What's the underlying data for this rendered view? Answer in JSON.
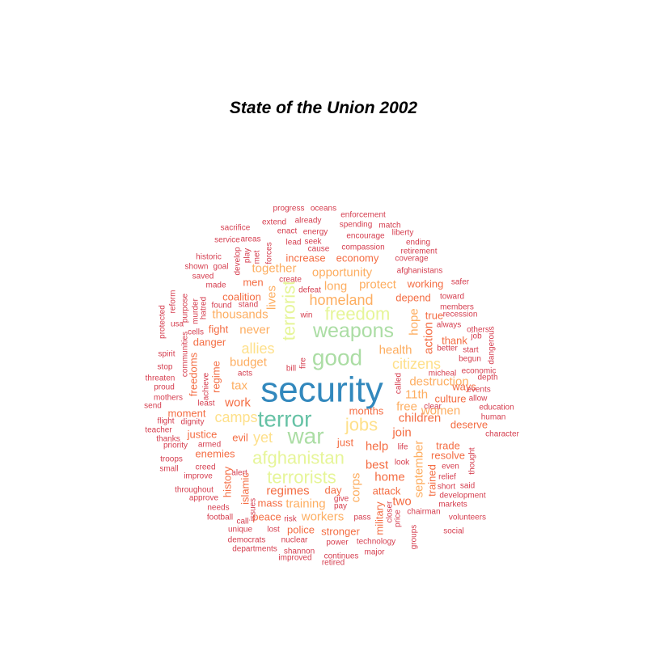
{
  "chart_data": {
    "type": "wordcloud",
    "title": "State of the Union 2002",
    "palette": [
      "#d53e4f",
      "#f46d43",
      "#fdae61",
      "#fee08b",
      "#e6f598",
      "#abdda4",
      "#66c2a5",
      "#3288bd"
    ],
    "words": [
      {
        "text": "security",
        "weight": 10,
        "color": "#3288bd"
      },
      {
        "text": "terror",
        "weight": 7,
        "color": "#66c2a5"
      },
      {
        "text": "war",
        "weight": 7,
        "color": "#abdda4"
      },
      {
        "text": "good",
        "weight": 7,
        "color": "#abdda4"
      },
      {
        "text": "weapons",
        "weight": 6,
        "color": "#abdda4"
      },
      {
        "text": "freedom",
        "weight": 5,
        "color": "#e6f598"
      },
      {
        "text": "terrorist",
        "weight": 5,
        "color": "#e6f598",
        "vertical": true
      },
      {
        "text": "afghanistan",
        "weight": 5,
        "color": "#e6f598"
      },
      {
        "text": "terrorists",
        "weight": 5,
        "color": "#e6f598"
      },
      {
        "text": "jobs",
        "weight": 5,
        "color": "#fee08b"
      },
      {
        "text": "citizens",
        "weight": 4,
        "color": "#fee08b"
      },
      {
        "text": "allies",
        "weight": 4,
        "color": "#fee08b"
      },
      {
        "text": "camps",
        "weight": 4,
        "color": "#fee08b"
      },
      {
        "text": "yet",
        "weight": 4,
        "color": "#fee08b"
      },
      {
        "text": "homeland",
        "weight": 4,
        "color": "#fdae61"
      },
      {
        "text": "budget",
        "weight": 3,
        "color": "#fdae61"
      },
      {
        "text": "never",
        "weight": 3,
        "color": "#fdae61"
      },
      {
        "text": "tax",
        "weight": 3,
        "color": "#fdae61"
      },
      {
        "text": "work",
        "weight": 3,
        "color": "#f46d43"
      },
      {
        "text": "help",
        "weight": 3,
        "color": "#f46d43"
      },
      {
        "text": "join",
        "weight": 3,
        "color": "#f46d43"
      },
      {
        "text": "best",
        "weight": 3,
        "color": "#f46d43"
      },
      {
        "text": "regimes",
        "weight": 3,
        "color": "#f46d43"
      },
      {
        "text": "lives",
        "weight": 3,
        "color": "#fdae61",
        "vertical": true
      },
      {
        "text": "corps",
        "weight": 3,
        "color": "#fdae61",
        "vertical": true
      },
      {
        "text": "destruction",
        "weight": 3,
        "color": "#fdae61"
      },
      {
        "text": "11th",
        "weight": 3,
        "color": "#fdae61"
      },
      {
        "text": "women",
        "weight": 3,
        "color": "#fdae61"
      },
      {
        "text": "together",
        "weight": 3,
        "color": "#fdae61"
      },
      {
        "text": "opportunity",
        "weight": 3,
        "color": "#fdae61"
      },
      {
        "text": "protect",
        "weight": 3,
        "color": "#fdae61"
      },
      {
        "text": "long",
        "weight": 3,
        "color": "#fdae61"
      },
      {
        "text": "thousands",
        "weight": 3,
        "color": "#fdae61"
      },
      {
        "text": "health",
        "weight": 3,
        "color": "#fdae61"
      },
      {
        "text": "free",
        "weight": 3,
        "color": "#fdae61"
      },
      {
        "text": "training",
        "weight": 3,
        "color": "#fdae61"
      },
      {
        "text": "workers",
        "weight": 3,
        "color": "#fdae61"
      },
      {
        "text": "september",
        "weight": 3,
        "color": "#fdae61",
        "vertical": true
      },
      {
        "text": "hope",
        "weight": 3,
        "color": "#fdae61",
        "vertical": true
      },
      {
        "text": "action",
        "weight": 3,
        "color": "#f46d43",
        "vertical": true
      },
      {
        "text": "children",
        "weight": 3,
        "color": "#f46d43"
      },
      {
        "text": "home",
        "weight": 3,
        "color": "#f46d43"
      },
      {
        "text": "two",
        "weight": 3,
        "color": "#f46d43"
      },
      {
        "text": "attack",
        "weight": 2,
        "color": "#f46d43"
      },
      {
        "text": "stronger",
        "weight": 2,
        "color": "#f46d43"
      },
      {
        "text": "military",
        "weight": 2,
        "color": "#f46d43",
        "vertical": true
      },
      {
        "text": "trained",
        "weight": 2,
        "color": "#f46d43",
        "vertical": true
      },
      {
        "text": "regime",
        "weight": 2,
        "color": "#f46d43",
        "vertical": true
      },
      {
        "text": "increase",
        "weight": 2,
        "color": "#f46d43"
      },
      {
        "text": "economy",
        "weight": 2,
        "color": "#f46d43"
      },
      {
        "text": "coalition",
        "weight": 2,
        "color": "#f46d43"
      },
      {
        "text": "depend",
        "weight": 2,
        "color": "#f46d43"
      },
      {
        "text": "working",
        "weight": 2,
        "color": "#f46d43"
      },
      {
        "text": "fight",
        "weight": 2,
        "color": "#f46d43"
      },
      {
        "text": "danger",
        "weight": 2,
        "color": "#f46d43"
      },
      {
        "text": "men",
        "weight": 2,
        "color": "#f46d43"
      },
      {
        "text": "true",
        "weight": 2,
        "color": "#f46d43"
      },
      {
        "text": "thank",
        "weight": 2,
        "color": "#f46d43"
      },
      {
        "text": "culture",
        "weight": 2,
        "color": "#f46d43"
      },
      {
        "text": "ways",
        "weight": 2,
        "color": "#f46d43"
      },
      {
        "text": "months",
        "weight": 2,
        "color": "#f46d43"
      },
      {
        "text": "moment",
        "weight": 2,
        "color": "#f46d43"
      },
      {
        "text": "justice",
        "weight": 2,
        "color": "#f46d43"
      },
      {
        "text": "evil",
        "weight": 2,
        "color": "#f46d43"
      },
      {
        "text": "just",
        "weight": 2,
        "color": "#f46d43"
      },
      {
        "text": "enemies",
        "weight": 2,
        "color": "#f46d43"
      },
      {
        "text": "trade",
        "weight": 2,
        "color": "#f46d43"
      },
      {
        "text": "resolve",
        "weight": 2,
        "color": "#f46d43"
      },
      {
        "text": "deserve",
        "weight": 2,
        "color": "#f46d43"
      },
      {
        "text": "day",
        "weight": 2,
        "color": "#f46d43"
      },
      {
        "text": "mass",
        "weight": 2,
        "color": "#f46d43"
      },
      {
        "text": "peace",
        "weight": 2,
        "color": "#f46d43"
      },
      {
        "text": "police",
        "weight": 2,
        "color": "#f46d43"
      },
      {
        "text": "history",
        "weight": 2,
        "color": "#f46d43",
        "vertical": true
      },
      {
        "text": "islamic",
        "weight": 2,
        "color": "#f46d43",
        "vertical": true
      },
      {
        "text": "freedoms",
        "weight": 2,
        "color": "#f46d43",
        "vertical": true
      },
      {
        "text": "communities",
        "weight": 1,
        "color": "#d53e4f",
        "vertical": true
      },
      {
        "text": "achieve",
        "weight": 1,
        "color": "#d53e4f",
        "vertical": true
      },
      {
        "text": "hatred",
        "weight": 1,
        "color": "#d53e4f",
        "vertical": true
      },
      {
        "text": "purpose",
        "weight": 1,
        "color": "#d53e4f",
        "vertical": true
      },
      {
        "text": "murder",
        "weight": 1,
        "color": "#d53e4f",
        "vertical": true
      },
      {
        "text": "develop",
        "weight": 1,
        "color": "#d53e4f",
        "vertical": true
      },
      {
        "text": "play",
        "weight": 1,
        "color": "#d53e4f",
        "vertical": true
      },
      {
        "text": "met",
        "weight": 1,
        "color": "#d53e4f",
        "vertical": true
      },
      {
        "text": "forces",
        "weight": 1,
        "color": "#d53e4f",
        "vertical": true
      },
      {
        "text": "reform",
        "weight": 1,
        "color": "#d53e4f",
        "vertical": true
      },
      {
        "text": "protected",
        "weight": 1,
        "color": "#d53e4f",
        "vertical": true
      },
      {
        "text": "called",
        "weight": 1,
        "color": "#d53e4f",
        "vertical": true
      },
      {
        "text": "closer",
        "weight": 1,
        "color": "#d53e4f",
        "vertical": true
      },
      {
        "text": "price",
        "weight": 1,
        "color": "#d53e4f",
        "vertical": true
      },
      {
        "text": "groups",
        "weight": 1,
        "color": "#d53e4f",
        "vertical": true
      },
      {
        "text": "thought",
        "weight": 1,
        "color": "#d53e4f",
        "vertical": true
      },
      {
        "text": "issues",
        "weight": 1,
        "color": "#d53e4f",
        "vertical": true
      },
      {
        "text": "dangerous",
        "weight": 1,
        "color": "#d53e4f",
        "vertical": true
      },
      {
        "text": "fire",
        "weight": 1,
        "color": "#d53e4f",
        "vertical": true
      },
      {
        "text": "progress",
        "weight": 1,
        "color": "#d53e4f"
      },
      {
        "text": "oceans",
        "weight": 1,
        "color": "#d53e4f"
      },
      {
        "text": "enforcement",
        "weight": 1,
        "color": "#d53e4f"
      },
      {
        "text": "sacrifice",
        "weight": 1,
        "color": "#d53e4f"
      },
      {
        "text": "extend",
        "weight": 1,
        "color": "#d53e4f"
      },
      {
        "text": "already",
        "weight": 1,
        "color": "#d53e4f"
      },
      {
        "text": "spending",
        "weight": 1,
        "color": "#d53e4f"
      },
      {
        "text": "match",
        "weight": 1,
        "color": "#d53e4f"
      },
      {
        "text": "enact",
        "weight": 1,
        "color": "#d53e4f"
      },
      {
        "text": "energy",
        "weight": 1,
        "color": "#d53e4f"
      },
      {
        "text": "liberty",
        "weight": 1,
        "color": "#d53e4f"
      },
      {
        "text": "service",
        "weight": 1,
        "color": "#d53e4f"
      },
      {
        "text": "areas",
        "weight": 1,
        "color": "#d53e4f"
      },
      {
        "text": "lead",
        "weight": 1,
        "color": "#d53e4f"
      },
      {
        "text": "seek",
        "weight": 1,
        "color": "#d53e4f"
      },
      {
        "text": "encourage",
        "weight": 1,
        "color": "#d53e4f"
      },
      {
        "text": "ending",
        "weight": 1,
        "color": "#d53e4f"
      },
      {
        "text": "cause",
        "weight": 1,
        "color": "#d53e4f"
      },
      {
        "text": "compassion",
        "weight": 1,
        "color": "#d53e4f"
      },
      {
        "text": "retirement",
        "weight": 1,
        "color": "#d53e4f"
      },
      {
        "text": "historic",
        "weight": 1,
        "color": "#d53e4f"
      },
      {
        "text": "coverage",
        "weight": 1,
        "color": "#d53e4f"
      },
      {
        "text": "shown",
        "weight": 1,
        "color": "#d53e4f"
      },
      {
        "text": "goal",
        "weight": 1,
        "color": "#d53e4f"
      },
      {
        "text": "afghanistans",
        "weight": 1,
        "color": "#d53e4f"
      },
      {
        "text": "saved",
        "weight": 1,
        "color": "#d53e4f"
      },
      {
        "text": "create",
        "weight": 1,
        "color": "#d53e4f"
      },
      {
        "text": "safer",
        "weight": 1,
        "color": "#d53e4f"
      },
      {
        "text": "made",
        "weight": 1,
        "color": "#d53e4f"
      },
      {
        "text": "defeat",
        "weight": 1,
        "color": "#d53e4f"
      },
      {
        "text": "toward",
        "weight": 1,
        "color": "#d53e4f"
      },
      {
        "text": "found",
        "weight": 1,
        "color": "#d53e4f"
      },
      {
        "text": "stand",
        "weight": 1,
        "color": "#d53e4f"
      },
      {
        "text": "members",
        "weight": 1,
        "color": "#d53e4f"
      },
      {
        "text": "win",
        "weight": 1,
        "color": "#d53e4f"
      },
      {
        "text": "recession",
        "weight": 1,
        "color": "#d53e4f"
      },
      {
        "text": "usa",
        "weight": 1,
        "color": "#d53e4f"
      },
      {
        "text": "cells",
        "weight": 1,
        "color": "#d53e4f"
      },
      {
        "text": "always",
        "weight": 1,
        "color": "#d53e4f"
      },
      {
        "text": "others",
        "weight": 1,
        "color": "#d53e4f"
      },
      {
        "text": "better",
        "weight": 1,
        "color": "#d53e4f"
      },
      {
        "text": "job",
        "weight": 1,
        "color": "#d53e4f"
      },
      {
        "text": "start",
        "weight": 1,
        "color": "#d53e4f"
      },
      {
        "text": "begun",
        "weight": 1,
        "color": "#d53e4f"
      },
      {
        "text": "spirit",
        "weight": 1,
        "color": "#d53e4f"
      },
      {
        "text": "stop",
        "weight": 1,
        "color": "#d53e4f"
      },
      {
        "text": "bill",
        "weight": 1,
        "color": "#d53e4f"
      },
      {
        "text": "acts",
        "weight": 1,
        "color": "#d53e4f"
      },
      {
        "text": "micheal",
        "weight": 1,
        "color": "#d53e4f"
      },
      {
        "text": "economic",
        "weight": 1,
        "color": "#d53e4f"
      },
      {
        "text": "threaten",
        "weight": 1,
        "color": "#d53e4f"
      },
      {
        "text": "depth",
        "weight": 1,
        "color": "#d53e4f"
      },
      {
        "text": "proud",
        "weight": 1,
        "color": "#d53e4f"
      },
      {
        "text": "events",
        "weight": 1,
        "color": "#d53e4f"
      },
      {
        "text": "least",
        "weight": 1,
        "color": "#d53e4f"
      },
      {
        "text": "mothers",
        "weight": 1,
        "color": "#d53e4f"
      },
      {
        "text": "allow",
        "weight": 1,
        "color": "#d53e4f"
      },
      {
        "text": "send",
        "weight": 1,
        "color": "#d53e4f"
      },
      {
        "text": "education",
        "weight": 1,
        "color": "#d53e4f"
      },
      {
        "text": "human",
        "weight": 1,
        "color": "#d53e4f"
      },
      {
        "text": "flight",
        "weight": 1,
        "color": "#d53e4f"
      },
      {
        "text": "dignity",
        "weight": 1,
        "color": "#d53e4f"
      },
      {
        "text": "clear",
        "weight": 1,
        "color": "#d53e4f"
      },
      {
        "text": "teacher",
        "weight": 1,
        "color": "#d53e4f"
      },
      {
        "text": "thanks",
        "weight": 1,
        "color": "#d53e4f"
      },
      {
        "text": "character",
        "weight": 1,
        "color": "#d53e4f"
      },
      {
        "text": "priority",
        "weight": 1,
        "color": "#d53e4f"
      },
      {
        "text": "armed",
        "weight": 1,
        "color": "#d53e4f"
      },
      {
        "text": "life",
        "weight": 1,
        "color": "#d53e4f"
      },
      {
        "text": "troops",
        "weight": 1,
        "color": "#d53e4f"
      },
      {
        "text": "look",
        "weight": 1,
        "color": "#d53e4f"
      },
      {
        "text": "even",
        "weight": 1,
        "color": "#d53e4f"
      },
      {
        "text": "small",
        "weight": 1,
        "color": "#d53e4f"
      },
      {
        "text": "creed",
        "weight": 1,
        "color": "#d53e4f"
      },
      {
        "text": "alert",
        "weight": 1,
        "color": "#d53e4f"
      },
      {
        "text": "improve",
        "weight": 1,
        "color": "#d53e4f"
      },
      {
        "text": "relief",
        "weight": 1,
        "color": "#d53e4f"
      },
      {
        "text": "short",
        "weight": 1,
        "color": "#d53e4f"
      },
      {
        "text": "said",
        "weight": 1,
        "color": "#d53e4f"
      },
      {
        "text": "throughout",
        "weight": 1,
        "color": "#d53e4f"
      },
      {
        "text": "approve",
        "weight": 1,
        "color": "#d53e4f"
      },
      {
        "text": "give",
        "weight": 1,
        "color": "#d53e4f"
      },
      {
        "text": "development",
        "weight": 1,
        "color": "#d53e4f"
      },
      {
        "text": "needs",
        "weight": 1,
        "color": "#d53e4f"
      },
      {
        "text": "pay",
        "weight": 1,
        "color": "#d53e4f"
      },
      {
        "text": "markets",
        "weight": 1,
        "color": "#d53e4f"
      },
      {
        "text": "chairman",
        "weight": 1,
        "color": "#d53e4f"
      },
      {
        "text": "volunteers",
        "weight": 1,
        "color": "#d53e4f"
      },
      {
        "text": "football",
        "weight": 1,
        "color": "#d53e4f"
      },
      {
        "text": "call",
        "weight": 1,
        "color": "#d53e4f"
      },
      {
        "text": "risk",
        "weight": 1,
        "color": "#d53e4f"
      },
      {
        "text": "pass",
        "weight": 1,
        "color": "#d53e4f"
      },
      {
        "text": "unique",
        "weight": 1,
        "color": "#d53e4f"
      },
      {
        "text": "lost",
        "weight": 1,
        "color": "#d53e4f"
      },
      {
        "text": "social",
        "weight": 1,
        "color": "#d53e4f"
      },
      {
        "text": "democrats",
        "weight": 1,
        "color": "#d53e4f"
      },
      {
        "text": "nuclear",
        "weight": 1,
        "color": "#d53e4f"
      },
      {
        "text": "power",
        "weight": 1,
        "color": "#d53e4f"
      },
      {
        "text": "technology",
        "weight": 1,
        "color": "#d53e4f"
      },
      {
        "text": "departments",
        "weight": 1,
        "color": "#d53e4f"
      },
      {
        "text": "shannon",
        "weight": 1,
        "color": "#d53e4f"
      },
      {
        "text": "major",
        "weight": 1,
        "color": "#d53e4f"
      },
      {
        "text": "improved",
        "weight": 1,
        "color": "#d53e4f"
      },
      {
        "text": "continues",
        "weight": 1,
        "color": "#d53e4f"
      },
      {
        "text": "retired",
        "weight": 1,
        "color": "#d53e4f"
      }
    ]
  }
}
